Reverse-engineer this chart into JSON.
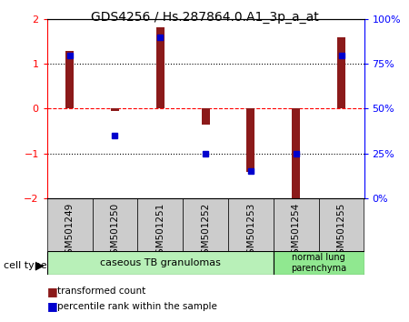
{
  "title": "GDS4256 / Hs.287864.0.A1_3p_a_at",
  "samples": [
    "GSM501249",
    "GSM501250",
    "GSM501251",
    "GSM501252",
    "GSM501253",
    "GSM501254",
    "GSM501255"
  ],
  "red_values": [
    1.3,
    -0.05,
    1.82,
    -0.35,
    -1.42,
    -2.05,
    1.6
  ],
  "blue_values": [
    80,
    35,
    90,
    25,
    15,
    25,
    80
  ],
  "red_color": "#8B1A1A",
  "blue_color": "#0000CD",
  "ylim_left": [
    -2,
    2
  ],
  "ylim_right": [
    0,
    100
  ],
  "yticks_left": [
    -2,
    -1,
    0,
    1,
    2
  ],
  "yticks_right": [
    0,
    25,
    50,
    75,
    100
  ],
  "ytick_labels_right": [
    "0%",
    "25%",
    "50%",
    "75%",
    "100%"
  ],
  "group1_label": "caseous TB granulomas",
  "group2_label": "normal lung\nparenchyma",
  "group1_color": "#b8f0b8",
  "group2_color": "#90e890",
  "cell_type_label": "cell type",
  "legend_red": "transformed count",
  "legend_blue": "percentile rank within the sample",
  "bar_width": 0.18,
  "group1_count": 5,
  "group2_count": 2
}
